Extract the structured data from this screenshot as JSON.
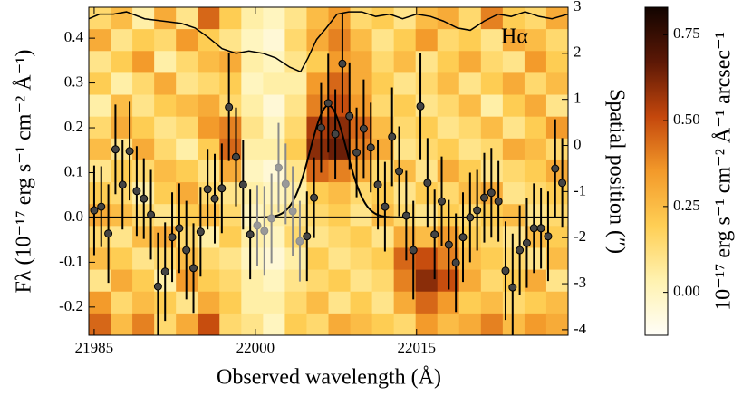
{
  "chart_data": {
    "type": "spectrum",
    "annotation": "Hα",
    "xlabel": "Observed wavelength (Å)",
    "ylabel": "Fλ (10⁻¹⁷ erg s⁻¹ cm⁻² Å⁻¹)",
    "y2label": "Spatial position (″)",
    "colorbar_label": "10⁻¹⁷ erg s⁻¹ cm⁻² Å⁻¹ arcsec⁻¹",
    "xlim": [
      21984.5,
      22029.1
    ],
    "ylim": [
      -0.263,
      0.469
    ],
    "y2lim": [
      -4.12,
      3
    ],
    "xticks": [
      21985,
      22000,
      22015
    ],
    "yticks": [
      -0.2,
      -0.1,
      {
        "value": 0,
        "label": "0.0"
      },
      0.1,
      0.2,
      0.3,
      0.4
    ],
    "y2ticks": [
      -4,
      -3,
      -2,
      -1,
      0,
      1,
      2,
      3
    ],
    "clim": [
      -0.125,
      0.83
    ],
    "cticks": [
      {
        "value": 0,
        "label": "0.00"
      },
      {
        "value": 0.25,
        "label": "0.25"
      },
      {
        "value": 0.5,
        "label": "0.50"
      },
      {
        "value": 0.75,
        "label": "0.75"
      }
    ],
    "colormap": [
      "#fffef8",
      "#fff2b0",
      "#ffcf55",
      "#f39a2a",
      "#c4470c",
      "#5c1806",
      "#120400"
    ],
    "heatmap": {
      "z": [
        [
          0.15,
          0.25,
          0.05,
          0.3,
          0.1,
          0.45,
          0.2,
          0.05,
          0.0,
          0.1,
          0.25,
          0.35,
          0.15,
          0.2,
          0.1,
          0.25,
          0.3,
          0.15,
          0.4,
          0.2,
          0.15,
          0.3
        ],
        [
          0.3,
          0.1,
          0.2,
          0.15,
          0.35,
          0.2,
          0.1,
          0.0,
          -0.05,
          0.15,
          0.3,
          0.4,
          0.25,
          0.1,
          0.2,
          0.35,
          0.15,
          0.2,
          0.1,
          0.3,
          0.25,
          0.15
        ],
        [
          0.1,
          0.2,
          0.35,
          0.05,
          0.15,
          0.25,
          0.3,
          0.05,
          0.0,
          0.1,
          0.2,
          0.35,
          0.3,
          0.15,
          0.25,
          0.1,
          0.2,
          0.3,
          0.15,
          0.1,
          0.35,
          0.2
        ],
        [
          0.2,
          0.05,
          0.15,
          0.3,
          0.1,
          0.15,
          0.2,
          0.0,
          0.05,
          0.05,
          0.35,
          0.45,
          0.3,
          0.2,
          0.1,
          0.15,
          0.25,
          0.1,
          0.2,
          0.3,
          0.15,
          0.25
        ],
        [
          0.05,
          0.25,
          0.1,
          0.2,
          0.25,
          0.3,
          0.15,
          0.05,
          -0.05,
          0.1,
          0.4,
          0.5,
          0.35,
          0.15,
          0.2,
          0.1,
          0.15,
          0.25,
          0.05,
          0.2,
          0.3,
          0.1
        ],
        [
          0.15,
          0.3,
          0.2,
          0.1,
          0.15,
          0.35,
          0.4,
          0.1,
          0.0,
          0.15,
          0.55,
          0.6,
          0.45,
          0.25,
          0.15,
          0.2,
          0.1,
          0.15,
          0.25,
          0.1,
          0.2,
          0.35
        ],
        [
          0.25,
          0.1,
          0.3,
          0.15,
          0.05,
          0.2,
          0.45,
          0.05,
          0.05,
          0.2,
          0.6,
          0.65,
          0.4,
          0.3,
          0.1,
          0.15,
          0.2,
          0.1,
          0.15,
          0.3,
          0.25,
          0.15
        ],
        [
          0.1,
          0.2,
          0.15,
          0.25,
          0.2,
          0.1,
          0.3,
          0.0,
          -0.05,
          0.1,
          0.45,
          0.4,
          0.3,
          0.15,
          0.25,
          0.1,
          0.3,
          0.2,
          0.1,
          0.15,
          0.2,
          0.3
        ],
        [
          0.2,
          0.15,
          0.05,
          0.2,
          0.3,
          0.15,
          0.1,
          0.05,
          0.0,
          0.05,
          0.2,
          0.25,
          0.15,
          0.2,
          0.1,
          0.2,
          0.15,
          0.25,
          0.3,
          0.1,
          0.15,
          0.2
        ],
        [
          0.3,
          0.25,
          0.15,
          0.1,
          0.2,
          0.25,
          0.15,
          0.0,
          0.05,
          0.1,
          0.15,
          0.2,
          0.1,
          0.25,
          0.15,
          0.1,
          0.2,
          0.15,
          0.2,
          0.25,
          0.1,
          0.15
        ],
        [
          0.15,
          0.1,
          0.25,
          0.3,
          0.15,
          0.05,
          0.2,
          0.05,
          0.0,
          0.15,
          0.1,
          0.15,
          0.2,
          0.1,
          0.3,
          0.25,
          0.35,
          0.2,
          0.15,
          0.1,
          0.25,
          0.2
        ],
        [
          0.25,
          0.2,
          0.1,
          0.15,
          0.25,
          0.15,
          0.1,
          0.0,
          -0.05,
          0.05,
          0.2,
          0.1,
          0.15,
          0.2,
          0.45,
          0.5,
          0.4,
          0.25,
          0.2,
          0.15,
          0.1,
          0.25
        ],
        [
          0.1,
          0.3,
          0.2,
          0.05,
          0.35,
          0.2,
          0.15,
          0.05,
          0.0,
          0.1,
          0.15,
          0.2,
          0.1,
          0.15,
          0.4,
          0.6,
          0.5,
          0.3,
          0.15,
          0.2,
          0.3,
          0.1
        ],
        [
          0.35,
          0.15,
          0.25,
          0.2,
          0.1,
          0.3,
          0.2,
          0.05,
          0.05,
          0.15,
          0.25,
          0.1,
          0.2,
          0.1,
          0.3,
          0.45,
          0.35,
          0.2,
          0.25,
          0.15,
          0.2,
          0.25
        ],
        [
          0.45,
          0.25,
          0.4,
          0.15,
          0.3,
          0.5,
          0.15,
          0.1,
          0.0,
          0.2,
          0.15,
          0.3,
          0.25,
          0.2,
          0.15,
          0.35,
          0.25,
          0.3,
          0.4,
          0.25,
          0.35,
          0.3
        ]
      ]
    },
    "x": [
      21985.0,
      21985.66,
      21986.32,
      21986.98,
      21987.64,
      21988.3,
      21988.96,
      21989.62,
      21990.28,
      21990.94,
      21991.6,
      21992.26,
      21992.92,
      21993.58,
      21994.24,
      21994.9,
      21995.56,
      21996.22,
      21996.88,
      21997.54,
      21998.2,
      21998.86,
      21999.52,
      22000.18,
      22000.84,
      22001.5,
      22002.16,
      22002.82,
      22003.48,
      22004.14,
      22004.8,
      22005.46,
      22006.12,
      22006.78,
      22007.44,
      22008.1,
      22008.76,
      22009.42,
      22010.08,
      22010.74,
      22011.4,
      22012.06,
      22012.72,
      22013.38,
      22014.04,
      22014.7,
      22015.36,
      22016.02,
      22016.68,
      22017.34,
      22018.0,
      22018.66,
      22019.32,
      22019.98,
      22020.64,
      22021.3,
      22021.96,
      22022.62,
      22023.28,
      22023.94,
      22024.6,
      22025.26,
      22025.92,
      22026.58,
      22027.24,
      22027.9,
      22028.56
    ],
    "values": [
      0.016,
      0.024,
      -0.036,
      0.152,
      0.073,
      0.148,
      0.059,
      0.042,
      0.006,
      -0.154,
      -0.121,
      -0.044,
      -0.024,
      -0.073,
      -0.113,
      -0.032,
      0.063,
      0.042,
      0.065,
      0.246,
      0.135,
      0.073,
      -0.038,
      -0.018,
      -0.03,
      -0.002,
      0.111,
      0.075,
      0.014,
      -0.053,
      -0.042,
      0.044,
      0.2,
      0.255,
      0.186,
      0.343,
      0.226,
      0.145,
      0.198,
      0.156,
      0.073,
      0.024,
      0.18,
      0.103,
      0.004,
      -0.073,
      0.248,
      0.077,
      -0.038,
      0.036,
      -0.061,
      -0.101,
      -0.044,
      0.0,
      0.016,
      0.044,
      0.055,
      0.036,
      -0.119,
      -0.156,
      -0.073,
      -0.057,
      -0.024,
      -0.024,
      -0.042,
      0.109,
      0.077
    ],
    "errors": [
      0.1,
      0.09,
      0.11,
      0.1,
      0.1,
      0.11,
      0.1,
      0.09,
      0.1,
      0.12,
      0.11,
      0.1,
      0.1,
      0.11,
      0.1,
      0.1,
      0.09,
      0.1,
      0.1,
      0.12,
      0.11,
      0.1,
      0.1,
      0.09,
      0.1,
      0.1,
      0.1,
      0.09,
      0.1,
      0.09,
      0.1,
      0.09,
      0.1,
      0.11,
      0.1,
      0.11,
      0.12,
      0.1,
      0.11,
      0.1,
      0.1,
      0.1,
      0.11,
      0.1,
      0.1,
      0.11,
      0.12,
      0.1,
      0.1,
      0.1,
      0.1,
      0.11,
      0.1,
      0.1,
      0.09,
      0.1,
      0.1,
      0.09,
      0.11,
      0.12,
      0.1,
      0.1,
      0.1,
      0.09,
      0.1,
      0.11,
      0.1
    ],
    "color": "#000000",
    "masked_color": "#8a8a8a",
    "masked_range": [
      22000.0,
      22004.5
    ],
    "fit": {
      "amplitude": 0.25,
      "center": 22006.8,
      "sigma": 1.68,
      "color": "#000000"
    },
    "sky": {
      "axis": "y2",
      "color": "#000000",
      "x": [
        21984.5,
        21985.5,
        21986.8,
        21988.0,
        21989.7,
        21991.4,
        21993.1,
        21994.4,
        21995.6,
        21996.9,
        21998.2,
        21999.4,
        22000.7,
        22001.9,
        22003.2,
        22004.2,
        22004.9,
        22005.7,
        22006.6,
        22007.6,
        22008.7,
        22009.9,
        22011.2,
        22012.5,
        22013.7,
        22015.0,
        22016.3,
        22017.5,
        22018.8,
        22020.0,
        22021.3,
        22022.6,
        22023.8,
        22025.1,
        22026.4,
        22027.6,
        22029.1
      ],
      "values": [
        2.75,
        2.85,
        2.85,
        2.9,
        2.75,
        2.7,
        2.65,
        2.55,
        2.35,
        2.1,
        2.0,
        2.05,
        2.0,
        1.9,
        1.7,
        1.6,
        1.9,
        2.3,
        2.55,
        2.85,
        2.9,
        2.9,
        2.8,
        2.85,
        2.75,
        2.85,
        2.8,
        2.7,
        2.55,
        2.5,
        2.7,
        2.85,
        2.8,
        2.9,
        2.8,
        2.75,
        2.85
      ]
    }
  }
}
